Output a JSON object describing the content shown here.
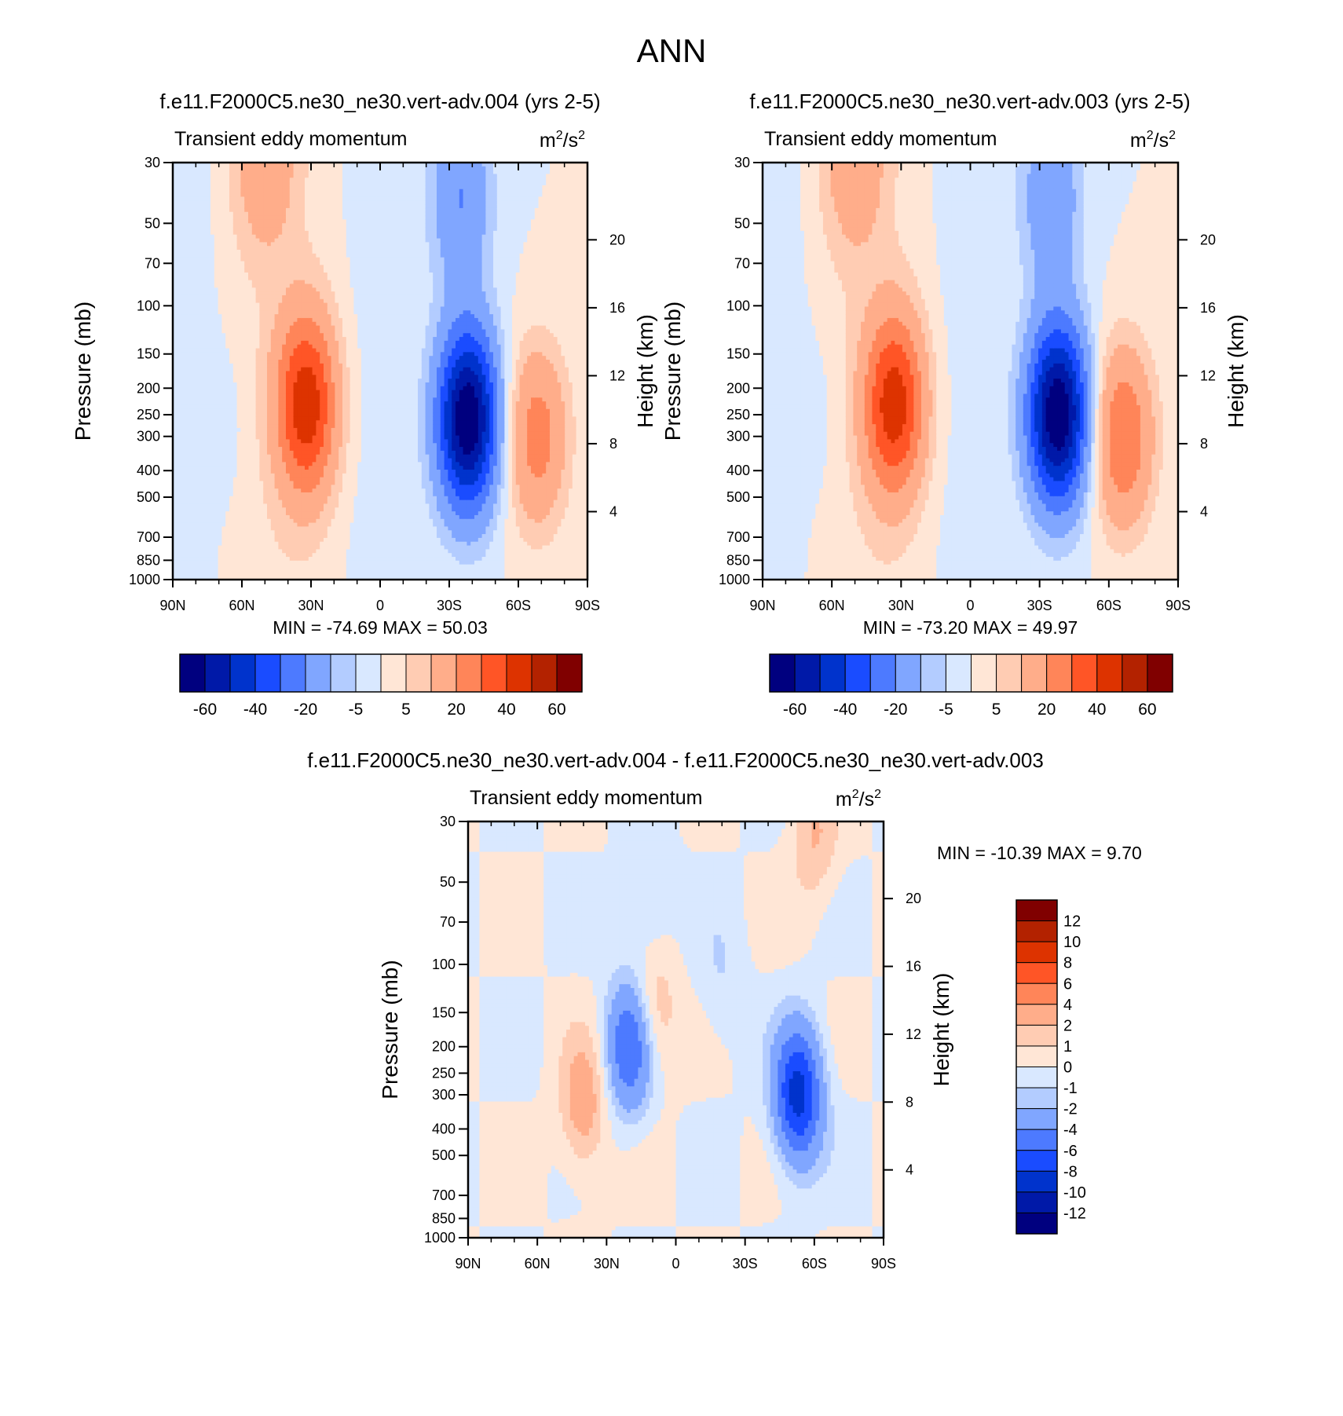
{
  "figure_title": "ANN",
  "chart_data": [
    {
      "type": "heatmap",
      "title": "f.e11.F2000C5.ne30_ne30.vert-adv.004 (yrs 2-5)",
      "subtitle": "Transient eddy momentum",
      "units": "m²/s²",
      "units_base": "m",
      "units_sup1": "2",
      "units_mid": "/s",
      "units_sup2": "2",
      "ylabel": "Pressure (mb)",
      "ylabel_right": "Height (km)",
      "x_ticks": [
        "90N",
        "60N",
        "30N",
        "0",
        "30S",
        "60S",
        "90S"
      ],
      "y_ticks": [
        "30",
        "50",
        "70",
        "100",
        "150",
        "200",
        "250",
        "300",
        "400",
        "500",
        "700",
        "850",
        "1000"
      ],
      "height_ticks": [
        "20",
        "16",
        "12",
        "8",
        "4"
      ],
      "stats": "MIN = -74.69  MAX =  50.03",
      "min": -74.69,
      "max": 50.03,
      "colorbar_labels": [
        "-60",
        "-40",
        "-20",
        "-5",
        "5",
        "20",
        "40",
        "60"
      ],
      "features": [
        {
          "lat": 32,
          "p": 230,
          "value": 45
        },
        {
          "lat": -38,
          "p": 260,
          "value": -70
        },
        {
          "lat": -68,
          "p": 300,
          "value": 25
        },
        {
          "lat": 50,
          "p": 30,
          "value": 15
        },
        {
          "lat": -35,
          "p": 40,
          "value": -20
        },
        {
          "lat": 70,
          "p": 280,
          "value": -4
        }
      ]
    },
    {
      "type": "heatmap",
      "title": "f.e11.F2000C5.ne30_ne30.vert-adv.003 (yrs 2-5)",
      "subtitle": "Transient eddy momentum",
      "units": "m²/s²",
      "units_base": "m",
      "units_sup1": "2",
      "units_mid": "/s",
      "units_sup2": "2",
      "ylabel": "Pressure (mb)",
      "ylabel_right": "Height (km)",
      "x_ticks": [
        "90N",
        "60N",
        "30N",
        "0",
        "30S",
        "60S",
        "90S"
      ],
      "y_ticks": [
        "30",
        "50",
        "70",
        "100",
        "150",
        "200",
        "250",
        "300",
        "400",
        "500",
        "700",
        "850",
        "1000"
      ],
      "height_ticks": [
        "20",
        "16",
        "12",
        "8",
        "4"
      ],
      "stats": "MIN = -73.20  MAX =  49.97",
      "min": -73.2,
      "max": 49.97,
      "colorbar_labels": [
        "-60",
        "-40",
        "-20",
        "-5",
        "5",
        "20",
        "40",
        "60"
      ],
      "features": [
        {
          "lat": 33,
          "p": 230,
          "value": 44
        },
        {
          "lat": -38,
          "p": 250,
          "value": -70
        },
        {
          "lat": -66,
          "p": 300,
          "value": 30
        },
        {
          "lat": 50,
          "p": 30,
          "value": 15
        },
        {
          "lat": -35,
          "p": 40,
          "value": -18
        },
        {
          "lat": 70,
          "p": 260,
          "value": -4
        }
      ]
    },
    {
      "type": "heatmap",
      "title": "f.e11.F2000C5.ne30_ne30.vert-adv.004 - f.e11.F2000C5.ne30_ne30.vert-adv.003",
      "subtitle": "Transient eddy momentum",
      "units": "m²/s²",
      "units_base": "m",
      "units_sup1": "2",
      "units_mid": "/s",
      "units_sup2": "2",
      "ylabel": "Pressure (mb)",
      "ylabel_right": "Height (km)",
      "x_ticks": [
        "90N",
        "60N",
        "30N",
        "0",
        "30S",
        "60S",
        "90S"
      ],
      "y_ticks": [
        "30",
        "50",
        "70",
        "100",
        "150",
        "200",
        "250",
        "300",
        "400",
        "500",
        "700",
        "850",
        "1000"
      ],
      "height_ticks": [
        "20",
        "16",
        "12",
        "8",
        "4"
      ],
      "stats": "MIN = -10.39  MAX =   9.70",
      "min": -10.39,
      "max": 9.7,
      "colorbar_labels": [
        "12",
        "10",
        "8",
        "6",
        "4",
        "2",
        "1",
        "0",
        "-1",
        "-2",
        "-4",
        "-6",
        "-8",
        "-10",
        "-12"
      ],
      "features": [
        {
          "lat": -53,
          "p": 300,
          "value": -9
        },
        {
          "lat": 20,
          "p": 200,
          "value": -6
        },
        {
          "lat": 40,
          "p": 330,
          "value": 3
        },
        {
          "lat": 10,
          "p": 150,
          "value": 2.5
        },
        {
          "lat": -60,
          "p": 35,
          "value": 2
        },
        {
          "lat": 12,
          "p": 60,
          "value": -1.5
        },
        {
          "lat": -20,
          "p": 120,
          "value": -1
        }
      ]
    }
  ],
  "colors": {
    "main_scale": [
      "#00007f",
      "#0019a8",
      "#0033cc",
      "#1a4cff",
      "#4d7aff",
      "#80a6ff",
      "#b3ccff",
      "#d9e8ff",
      "#ffe6d6",
      "#ffccb3",
      "#ffad8a",
      "#ff8559",
      "#ff5526",
      "#dd3300",
      "#b32200",
      "#800000"
    ],
    "diff_scale": [
      "#800000",
      "#b32200",
      "#dd3300",
      "#ff5526",
      "#ff8559",
      "#ffad8a",
      "#ffccb3",
      "#ffe6d6",
      "#d9e8ff",
      "#b3ccff",
      "#80a6ff",
      "#4d7aff",
      "#1a4cff",
      "#0033cc",
      "#0019a8",
      "#00007f"
    ]
  }
}
